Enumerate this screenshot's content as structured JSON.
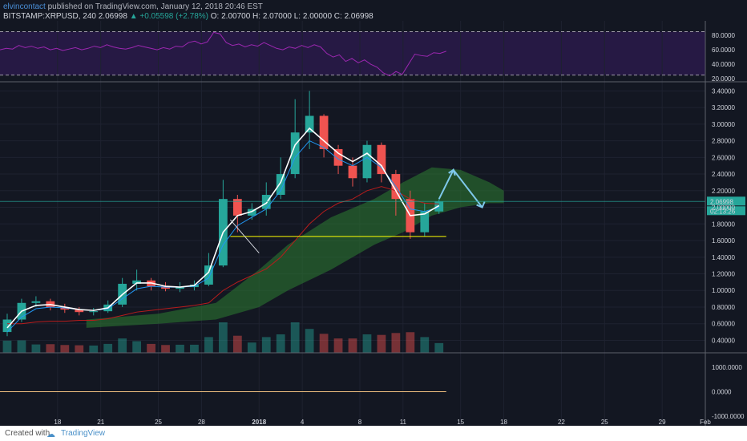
{
  "header": {
    "author": "elvincontact",
    "published_text": "published on TradingView.com, January 12, 2018 20:46 EST",
    "symbol": "BITSTAMP:XRPUSD, 240",
    "last": "2.06998",
    "change_arrow": "▲",
    "change": "+0.05598 (+2.78%)",
    "ohlc": "O: 2.00700  H: 2.07000  L: 2.00000  C: 2.06998"
  },
  "footer": {
    "created_with": "Created with",
    "brand": "TradingView",
    "logo_icon": "cloud-icon"
  },
  "colors": {
    "background": "#131722",
    "up": "#26a69a",
    "down": "#ef5350",
    "rsi": "#9c27b0",
    "white_ma": "#ffffff",
    "blue_ma": "#2196f3",
    "red_ma": "#b71c1c",
    "cloud": "#2e7d32",
    "support": "#ffff00",
    "projection": "#7ec8ea",
    "last_price_tag": "#26a69a"
  },
  "chart_data": {
    "type": "candlestick",
    "x_ticks": [
      "18",
      "21",
      "25",
      "28",
      "2018",
      "4",
      "8",
      "11",
      "15",
      "18",
      "22",
      "25",
      "29",
      "Feb"
    ],
    "x_range": [
      "2017-12-14",
      "2018-02-01"
    ],
    "price_axis": {
      "ticks": [
        "3.40000",
        "3.20000",
        "3.00000",
        "2.80000",
        "2.60000",
        "2.40000",
        "2.20000",
        "2.00000",
        "1.80000",
        "1.60000",
        "1.40000",
        "1.20000",
        "1.00000",
        "0.80000",
        "0.60000",
        "0.40000"
      ],
      "ylim": [
        0.25,
        3.5
      ]
    },
    "last_price_label": "2.06998",
    "countdown_label": "02:13:26",
    "last_price": 2.06998,
    "support_level": 1.65,
    "rsi_axis": {
      "ticks": [
        "80.0000",
        "60.0000",
        "40.0000",
        "20.0000"
      ],
      "upper_band": 85,
      "lower_band": 25,
      "ylim": [
        18,
        100
      ]
    },
    "rsi_values": [
      60,
      62,
      61,
      66,
      63,
      65,
      62,
      64,
      60,
      62,
      59,
      61,
      63,
      60,
      62,
      65,
      63,
      67,
      64,
      62,
      61,
      63,
      66,
      64,
      62,
      60,
      63,
      61,
      65,
      64,
      70,
      72,
      68,
      71,
      84,
      82,
      70,
      66,
      68,
      64,
      67,
      65,
      70,
      66,
      62,
      60,
      64,
      62,
      66,
      63,
      67,
      64,
      55,
      50,
      53,
      44,
      48,
      42,
      46,
      40,
      36,
      28,
      24,
      30,
      26,
      40,
      54,
      52,
      51,
      56,
      55,
      58
    ],
    "osc_axis": {
      "ticks": [
        "1000.0000",
        "0.0000",
        "-1000.0000"
      ],
      "zero": 0,
      "ylim": [
        -1400,
        1600
      ]
    },
    "series": [
      {
        "name": "XRPUSD",
        "dates": [
          "2017-12-14",
          "2017-12-15",
          "2017-12-16",
          "2017-12-17",
          "2017-12-18",
          "2017-12-19",
          "2017-12-20",
          "2017-12-21",
          "2017-12-22",
          "2017-12-23",
          "2017-12-24",
          "2017-12-25",
          "2017-12-26",
          "2017-12-27",
          "2017-12-28",
          "2017-12-29",
          "2017-12-30",
          "2017-12-31",
          "2018-01-01",
          "2018-01-02",
          "2018-01-03",
          "2018-01-04",
          "2018-01-05",
          "2018-01-06",
          "2018-01-07",
          "2018-01-08",
          "2018-01-09",
          "2018-01-10",
          "2018-01-11",
          "2018-01-12",
          "2018-01-13"
        ],
        "close": [
          0.65,
          0.85,
          0.87,
          0.8,
          0.77,
          0.74,
          0.75,
          0.83,
          1.08,
          1.12,
          1.05,
          1.02,
          1.04,
          1.07,
          1.3,
          2.1,
          1.9,
          1.98,
          2.15,
          2.4,
          2.9,
          3.1,
          2.7,
          2.5,
          2.35,
          2.75,
          2.4,
          2.1,
          1.7,
          1.95,
          2.07
        ],
        "open": [
          0.5,
          0.65,
          0.85,
          0.87,
          0.8,
          0.77,
          0.74,
          0.75,
          0.83,
          1.08,
          1.12,
          1.05,
          1.02,
          1.04,
          1.07,
          1.3,
          2.1,
          1.9,
          1.98,
          2.15,
          2.4,
          2.9,
          3.1,
          2.7,
          2.5,
          2.35,
          2.75,
          2.4,
          2.1,
          1.7,
          1.95
        ],
        "high": [
          0.72,
          0.9,
          0.93,
          0.9,
          0.84,
          0.8,
          0.79,
          0.88,
          1.15,
          1.25,
          1.15,
          1.1,
          1.1,
          1.12,
          1.45,
          2.33,
          2.15,
          2.05,
          2.3,
          2.6,
          3.3,
          3.4,
          3.12,
          2.75,
          2.6,
          2.8,
          2.78,
          2.45,
          2.2,
          2.05,
          2.1
        ],
        "low": [
          0.45,
          0.62,
          0.8,
          0.76,
          0.73,
          0.7,
          0.7,
          0.73,
          0.8,
          1.0,
          1.0,
          0.99,
          0.98,
          1.0,
          1.05,
          1.28,
          1.7,
          1.85,
          1.9,
          2.1,
          2.35,
          2.7,
          2.6,
          2.4,
          2.25,
          2.3,
          2.3,
          1.9,
          1.62,
          1.65,
          1.92
        ]
      },
      {
        "name": "",
        "values": [
          0.55,
          0.75,
          0.82,
          0.83,
          0.8,
          0.77,
          0.76,
          0.79,
          0.95,
          1.09,
          1.09,
          1.05,
          1.04,
          1.06,
          1.22,
          1.7,
          1.9,
          1.95,
          2.05,
          2.3,
          2.75,
          2.95,
          2.8,
          2.65,
          2.55,
          2.65,
          2.5,
          2.2,
          1.9,
          1.92,
          2.02
        ]
      },
      {
        "name": "",
        "values": [
          0.5,
          0.68,
          0.78,
          0.8,
          0.79,
          0.77,
          0.76,
          0.78,
          0.9,
          1.02,
          1.05,
          1.04,
          1.04,
          1.05,
          1.15,
          1.55,
          1.78,
          1.88,
          1.98,
          2.2,
          2.6,
          2.8,
          2.72,
          2.58,
          2.5,
          2.6,
          2.48,
          2.25,
          1.98,
          1.95,
          2.0
        ]
      },
      {
        "name": "",
        "values": [
          0.6,
          0.6,
          0.62,
          0.63,
          0.63,
          0.64,
          0.64,
          0.66,
          0.7,
          0.74,
          0.76,
          0.78,
          0.8,
          0.82,
          0.85,
          1.0,
          1.1,
          1.18,
          1.26,
          1.4,
          1.6,
          1.8,
          1.95,
          2.05,
          2.1,
          2.2,
          2.25,
          2.2,
          2.1,
          2.05,
          2.04
        ]
      },
      {
        "name": "",
        "dates": [
          "2017-12-20",
          "2017-12-25",
          "2017-12-29",
          "2018-01-01",
          "2018-01-03",
          "2018-01-06",
          "2018-01-09",
          "2018-01-11",
          "2018-01-13",
          "2018-01-15",
          "2018-01-17",
          "2018-01-18"
        ],
        "upper": [
          0.65,
          0.72,
          0.85,
          1.25,
          1.55,
          1.88,
          2.1,
          2.3,
          2.48,
          2.45,
          2.3,
          2.2
        ],
        "lower": [
          0.55,
          0.6,
          0.65,
          0.8,
          1.0,
          1.25,
          1.55,
          1.7,
          1.9,
          2.0,
          2.05,
          2.05
        ]
      },
      {
        "name": "",
        "volume_axis_max": 100
      }
    ],
    "projection": [
      {
        "date": "2018-01-13",
        "price": 2.1
      },
      {
        "date": "2018-01-14",
        "price": 2.45
      },
      {
        "date": "2018-01-16",
        "price": 2.0
      }
    ],
    "annotation_line": [
      {
        "date": "2017-12-30",
        "price": 1.85
      },
      {
        "date": "2017-12-31",
        "price": 1.45
      }
    ]
  }
}
